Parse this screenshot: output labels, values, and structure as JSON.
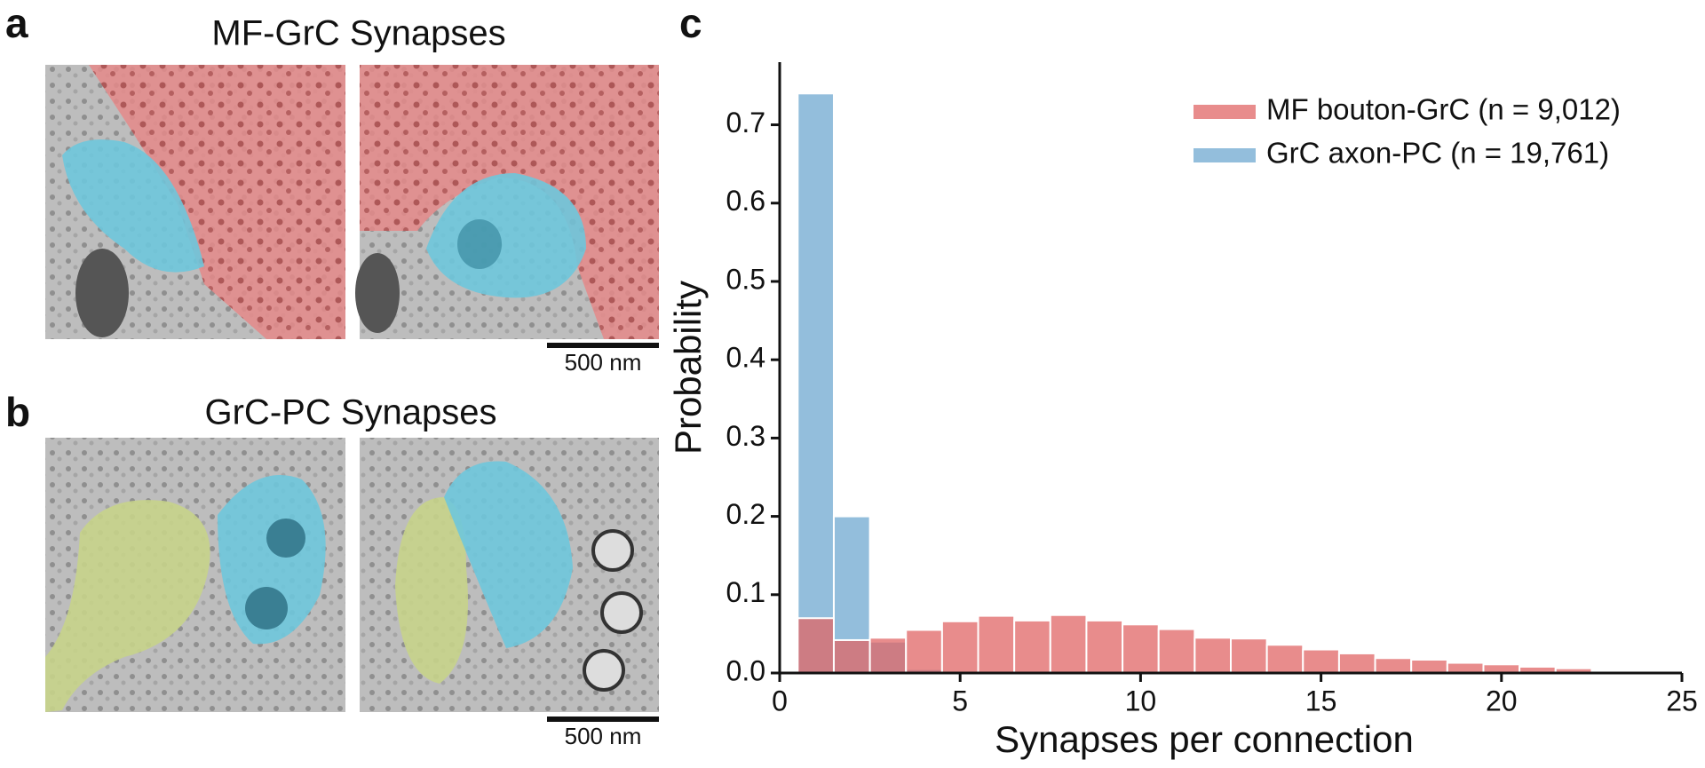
{
  "panels": {
    "a": {
      "letter": "a",
      "title": "MF-GrC Synapses",
      "scale_bar": "500 nm"
    },
    "b": {
      "letter": "b",
      "title": "GrC-PC Synapses",
      "scale_bar": "500 nm"
    }
  },
  "chart_data": {
    "type": "histogram",
    "letter": "c",
    "xlabel": "Synapses per connection",
    "ylabel": "Probability",
    "bins": [
      0.5,
      1.5,
      2.5,
      3.5,
      4.5,
      5.5,
      6.5,
      7.5,
      8.5,
      9.5,
      10.5,
      11.5,
      12.5,
      13.5,
      14.5,
      15.5,
      16.5,
      17.5,
      18.5,
      19.5,
      20.5,
      21.5,
      22.5
    ],
    "series": [
      {
        "name": "MF bouton-GrC (n = 9,012)",
        "color": "#e06666",
        "values": [
          0.07,
          0.042,
          0.045,
          0.055,
          0.066,
          0.073,
          0.067,
          0.074,
          0.067,
          0.062,
          0.056,
          0.045,
          0.044,
          0.036,
          0.03,
          0.025,
          0.019,
          0.017,
          0.013,
          0.011,
          0.008,
          0.006
        ]
      },
      {
        "name": "GrC axon-PC (n = 19,761)",
        "color": "#6fa8d0",
        "values": [
          0.74,
          0.2,
          0.04,
          0.005,
          0,
          0,
          0,
          0,
          0,
          0,
          0,
          0,
          0,
          0,
          0,
          0,
          0,
          0,
          0,
          0,
          0,
          0
        ]
      }
    ],
    "xlim": [
      0,
      25
    ],
    "xticks": [
      0,
      5,
      10,
      15,
      20,
      25
    ],
    "ylim": [
      0,
      0.78
    ],
    "yticks": [
      {
        "value": 0,
        "label": "0.0"
      },
      0.1,
      0.2,
      0.3,
      0.4,
      0.5,
      0.6,
      0.7
    ],
    "legend": "upper right",
    "grid": false
  }
}
